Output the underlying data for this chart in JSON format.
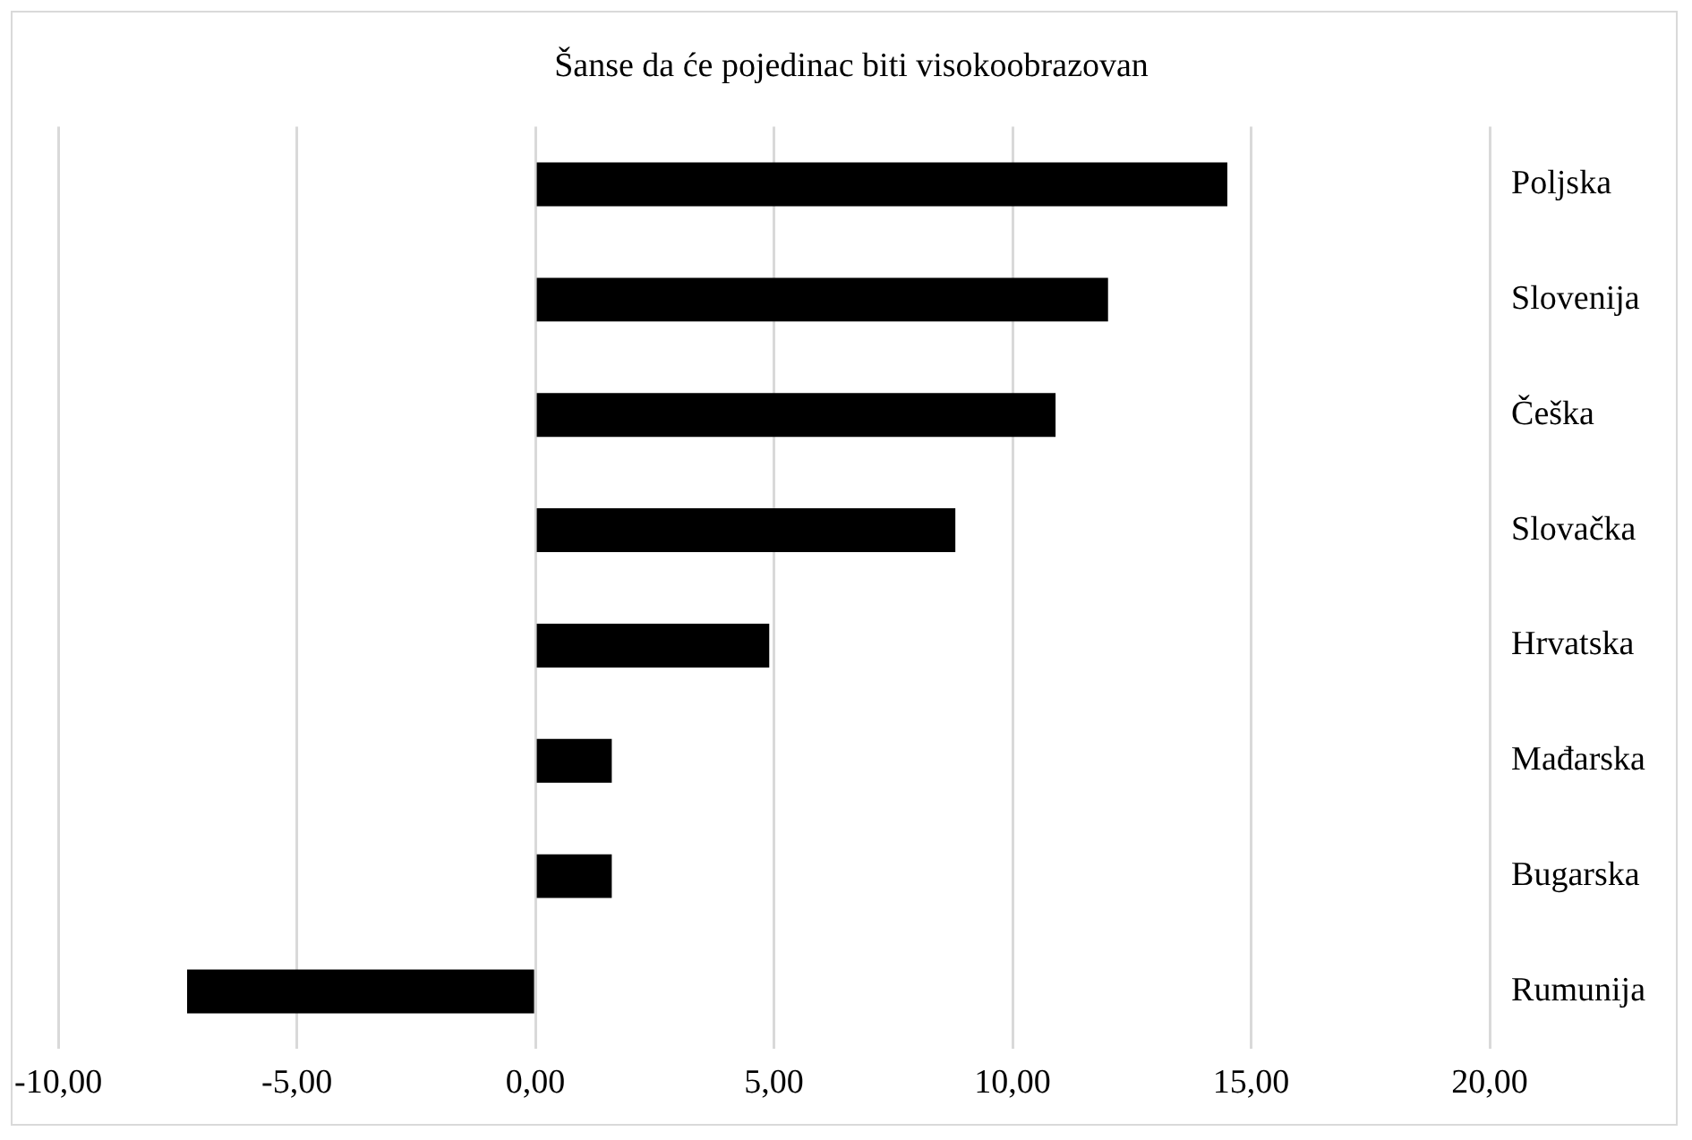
{
  "chart_data": {
    "type": "bar",
    "orientation": "horizontal",
    "title": "Šanse da će pojedinac biti visokoobrazovan",
    "categories": [
      "Poljska",
      "Slovenija",
      "Češka",
      "Slovačka",
      "Hrvatska",
      "Mađarska",
      "Bugarska",
      "Rumunija"
    ],
    "values": [
      14.5,
      12.0,
      10.9,
      8.8,
      4.9,
      1.6,
      1.6,
      -7.3
    ],
    "color": "#000000",
    "xlim": [
      -10,
      20
    ],
    "xticks": [
      {
        "value": -10,
        "label": "-10,00"
      },
      {
        "value": -5,
        "label": "-5,00"
      },
      {
        "value": 0,
        "label": "0,00"
      },
      {
        "value": 5,
        "label": "5,00"
      },
      {
        "value": 10,
        "label": "10,00"
      },
      {
        "value": 15,
        "label": "15,00"
      },
      {
        "value": 20,
        "label": "20,00"
      }
    ],
    "grid": "x",
    "legend": false
  }
}
